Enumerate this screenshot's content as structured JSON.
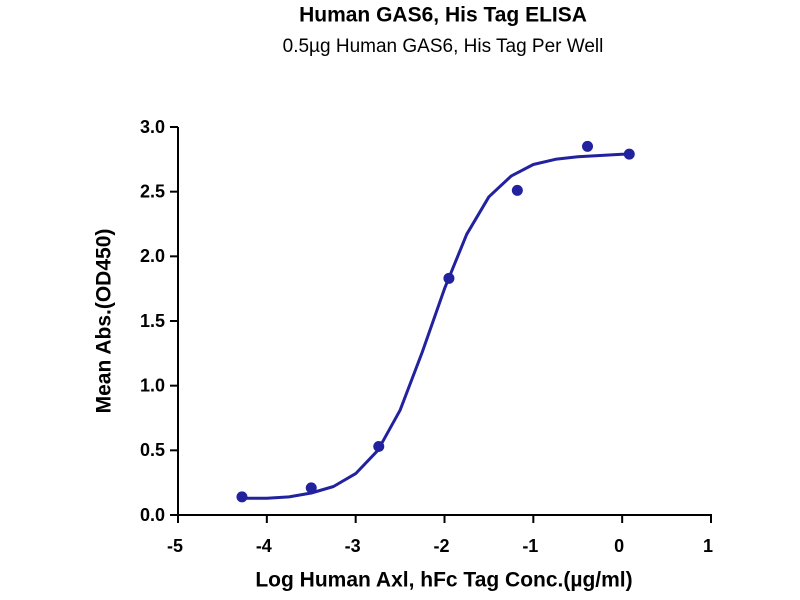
{
  "chart_data": {
    "type": "scatter",
    "title": "Human GAS6, His Tag ELISA",
    "subtitle": "0.5µg Human GAS6, His Tag Per Well",
    "x_label": "Log Human Axl, hFc Tag Conc.(µg/ml)",
    "y_label": "Mean Abs.(OD450)",
    "xlim": [
      -5,
      1
    ],
    "xticks": [
      -5,
      -4,
      -3,
      -2,
      -1,
      0,
      1
    ],
    "ylim": [
      0,
      3
    ],
    "yticks": [
      {
        "value": 0,
        "label": "0.0"
      },
      0.5,
      {
        "value": 1,
        "label": "1.0"
      },
      1.5,
      {
        "value": 2,
        "label": "2.0"
      },
      2.5,
      {
        "value": 3,
        "label": "3.0"
      }
    ],
    "color": "#22229e",
    "series": [
      {
        "mode": "markers",
        "x": [
          -4.28,
          -3.5,
          -2.74,
          -1.95,
          -1.18,
          -0.39,
          0.08
        ],
        "values": [
          0.14,
          0.21,
          0.53,
          1.83,
          2.51,
          2.85,
          2.79
        ]
      },
      {
        "mode": "line",
        "x": [
          -4.27,
          -4.0,
          -3.75,
          -3.5,
          -3.25,
          -3.0,
          -2.75,
          -2.5,
          -2.25,
          -2.0,
          -1.75,
          -1.5,
          -1.25,
          -1.0,
          -0.75,
          -0.5,
          -0.25,
          0.0,
          0.08
        ],
        "values": [
          0.13,
          0.13,
          0.14,
          0.17,
          0.22,
          0.32,
          0.5,
          0.81,
          1.26,
          1.75,
          2.17,
          2.46,
          2.62,
          2.71,
          2.75,
          2.77,
          2.78,
          2.79,
          2.79
        ]
      }
    ]
  }
}
